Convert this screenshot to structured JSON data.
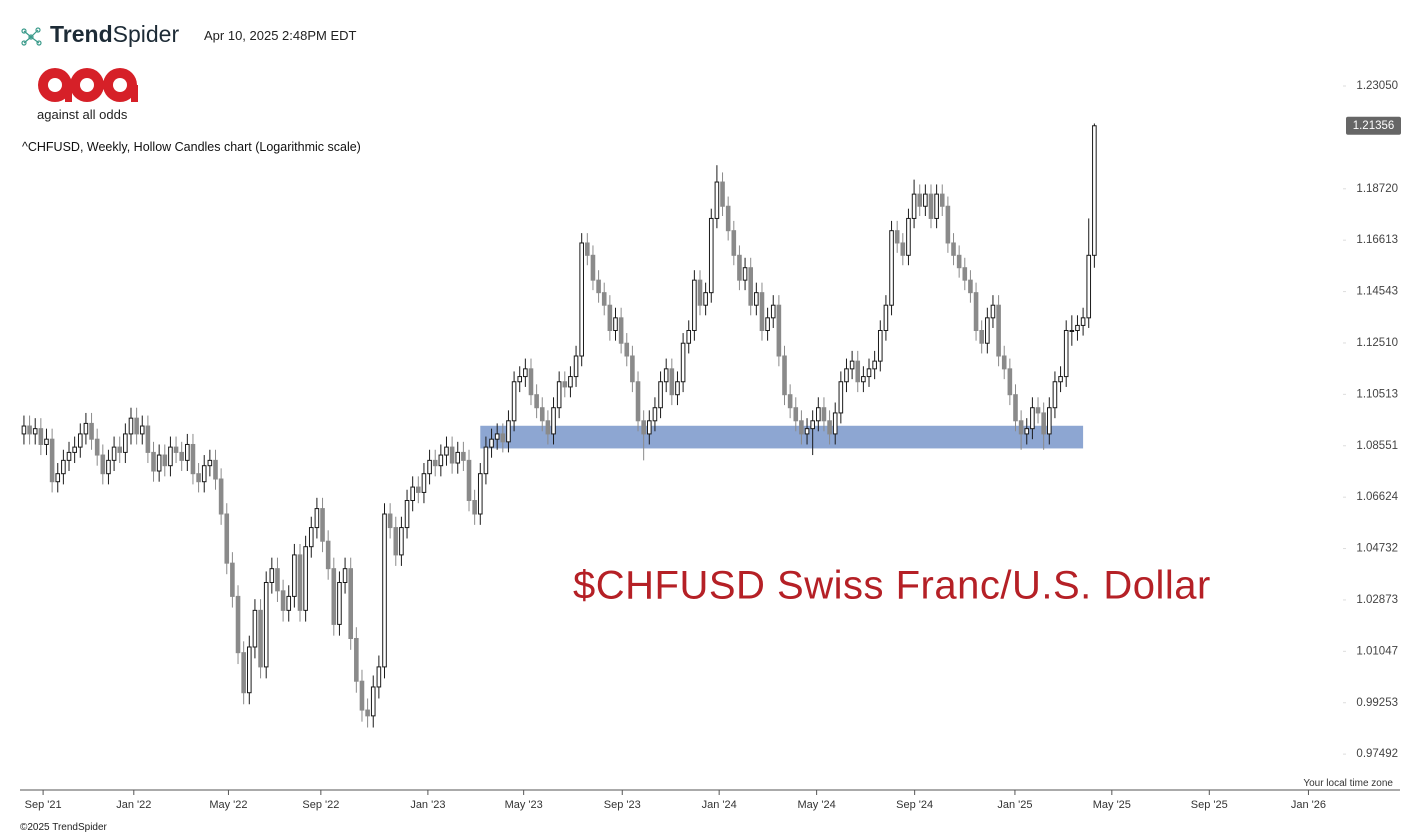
{
  "header": {
    "brand_bold": "Trend",
    "brand_light": "Spider",
    "timestamp": "Apr 10, 2025 2:48PM EDT"
  },
  "logo": {
    "caption": "against all odds"
  },
  "footer": {
    "copyright": "©2025 TrendSpider",
    "timezone_note": "Your local time zone"
  },
  "chart_data": {
    "type": "candlestick",
    "title": "^CHFUSD, Weekly, Hollow Candles chart (Logarithmic scale)",
    "annotation": "$CHFUSD Swiss Franc/U.S. Dollar",
    "log_scale": true,
    "up_color": "#1a1a1a",
    "down_color": "#8a8a8a",
    "last_price": 1.21356,
    "support_zone": {
      "xlim": [
        81,
        188
      ],
      "ylim": [
        1.0845,
        1.0931
      ],
      "color": "#8da6d2"
    },
    "xlim": [
      -0.7,
      233.6
    ],
    "xticks": [
      {
        "value": 3.4,
        "label": "Sep '21"
      },
      {
        "value": 19.5,
        "label": "Jan '22"
      },
      {
        "value": 36.3,
        "label": "May '22"
      },
      {
        "value": 52.7,
        "label": "Sep '22"
      },
      {
        "value": 71.7,
        "label": "Jan '23"
      },
      {
        "value": 88.7,
        "label": "May '23"
      },
      {
        "value": 106.2,
        "label": "Sep '23"
      },
      {
        "value": 123.4,
        "label": "Jan '24"
      },
      {
        "value": 140.7,
        "label": "May '24"
      },
      {
        "value": 158.1,
        "label": "Sep '24"
      },
      {
        "value": 175.9,
        "label": "Jan '25"
      },
      {
        "value": 193.1,
        "label": "May '25"
      },
      {
        "value": 210.4,
        "label": "Sep '25"
      },
      {
        "value": 228.0,
        "label": "Jan '26"
      }
    ],
    "ylim": [
      0.9628,
      1.2417
    ],
    "yticks": [
      {
        "value": 1.2305,
        "label": "1.23050"
      },
      {
        "value": 1.1872,
        "label": "1.18720"
      },
      {
        "value": 1.16613,
        "label": "1.16613"
      },
      {
        "value": 1.14543,
        "label": "1.14543"
      },
      {
        "value": 1.1251,
        "label": "1.12510"
      },
      {
        "value": 1.10513,
        "label": "1.10513"
      },
      {
        "value": 1.08551,
        "label": "1.08551"
      },
      {
        "value": 1.06624,
        "label": "1.06624"
      },
      {
        "value": 1.04732,
        "label": "1.04732"
      },
      {
        "value": 1.02873,
        "label": "1.02873"
      },
      {
        "value": 1.01047,
        "label": "1.01047"
      },
      {
        "value": 0.99253,
        "label": "0.99253"
      },
      {
        "value": 0.97492,
        "label": "0.97492"
      }
    ],
    "open": [
      1.09,
      1.093,
      1.09,
      1.092,
      1.086,
      1.088,
      1.072,
      1.075,
      1.08,
      1.083,
      1.085,
      1.09,
      1.094,
      1.088,
      1.082,
      1.075,
      1.08,
      1.085,
      1.083,
      1.09,
      1.096,
      1.09,
      1.093,
      1.083,
      1.076,
      1.082,
      1.078,
      1.085,
      1.083,
      1.08,
      1.086,
      1.075,
      1.072,
      1.078,
      1.08,
      1.073,
      1.06,
      1.042,
      1.03,
      1.01,
      0.996,
      1.012,
      1.025,
      1.005,
      1.035,
      1.04,
      1.032,
      1.025,
      1.03,
      1.045,
      1.025,
      1.048,
      1.055,
      1.062,
      1.05,
      1.04,
      1.02,
      1.035,
      1.04,
      1.015,
      1.0,
      0.99,
      0.988,
      0.998,
      1.005,
      1.06,
      1.055,
      1.045,
      1.055,
      1.065,
      1.07,
      1.068,
      1.075,
      1.08,
      1.078,
      1.082,
      1.085,
      1.079,
      1.083,
      1.08,
      1.065,
      1.06,
      1.075,
      1.085,
      1.088,
      1.09,
      1.087,
      1.095,
      1.11,
      1.112,
      1.115,
      1.105,
      1.1,
      1.095,
      1.09,
      1.1,
      1.11,
      1.108,
      1.112,
      1.12,
      1.165,
      1.16,
      1.15,
      1.145,
      1.14,
      1.13,
      1.135,
      1.125,
      1.12,
      1.11,
      1.095,
      1.09,
      1.095,
      1.1,
      1.11,
      1.115,
      1.105,
      1.11,
      1.125,
      1.13,
      1.15,
      1.14,
      1.145,
      1.175,
      1.19,
      1.18,
      1.17,
      1.16,
      1.15,
      1.155,
      1.14,
      1.145,
      1.13,
      1.135,
      1.14,
      1.12,
      1.105,
      1.1,
      1.095,
      1.09,
      1.092,
      1.095,
      1.1,
      1.095,
      1.09,
      1.098,
      1.11,
      1.115,
      1.118,
      1.11,
      1.112,
      1.115,
      1.118,
      1.13,
      1.14,
      1.17,
      1.165,
      1.16,
      1.175,
      1.185,
      1.18,
      1.185,
      1.175,
      1.185,
      1.18,
      1.165,
      1.16,
      1.155,
      1.15,
      1.145,
      1.13,
      1.125,
      1.135,
      1.14,
      1.12,
      1.115,
      1.105,
      1.095,
      1.09,
      1.092,
      1.1,
      1.098,
      1.09,
      1.1,
      1.11,
      1.112,
      1.13,
      1.13,
      1.132,
      1.135,
      1.16
    ],
    "high": [
      1.097,
      1.097,
      1.096,
      1.096,
      1.092,
      1.092,
      1.079,
      1.084,
      1.087,
      1.089,
      1.094,
      1.098,
      1.098,
      1.092,
      1.086,
      1.084,
      1.089,
      1.089,
      1.094,
      1.1,
      1.1,
      1.097,
      1.097,
      1.087,
      1.086,
      1.086,
      1.089,
      1.089,
      1.087,
      1.09,
      1.09,
      1.079,
      1.082,
      1.084,
      1.084,
      1.077,
      1.064,
      1.046,
      1.034,
      1.014,
      1.016,
      1.029,
      1.029,
      1.039,
      1.044,
      1.044,
      1.036,
      1.034,
      1.049,
      1.049,
      1.052,
      1.059,
      1.066,
      1.066,
      1.054,
      1.044,
      1.039,
      1.044,
      1.044,
      1.019,
      1.004,
      0.994,
      1.002,
      1.009,
      1.064,
      1.064,
      1.059,
      1.059,
      1.069,
      1.074,
      1.074,
      1.079,
      1.084,
      1.084,
      1.086,
      1.089,
      1.089,
      1.087,
      1.087,
      1.084,
      1.069,
      1.079,
      1.089,
      1.092,
      1.094,
      1.094,
      1.099,
      1.114,
      1.116,
      1.119,
      1.119,
      1.109,
      1.104,
      1.099,
      1.104,
      1.114,
      1.114,
      1.116,
      1.124,
      1.169,
      1.169,
      1.164,
      1.154,
      1.149,
      1.144,
      1.139,
      1.139,
      1.129,
      1.124,
      1.114,
      1.099,
      1.099,
      1.104,
      1.114,
      1.119,
      1.119,
      1.114,
      1.129,
      1.134,
      1.154,
      1.154,
      1.149,
      1.179,
      1.197,
      1.194,
      1.184,
      1.174,
      1.164,
      1.159,
      1.159,
      1.149,
      1.149,
      1.139,
      1.144,
      1.144,
      1.124,
      1.109,
      1.104,
      1.099,
      1.096,
      1.099,
      1.104,
      1.104,
      1.099,
      1.102,
      1.114,
      1.119,
      1.122,
      1.122,
      1.116,
      1.119,
      1.122,
      1.134,
      1.144,
      1.174,
      1.174,
      1.169,
      1.179,
      1.191,
      1.189,
      1.189,
      1.189,
      1.189,
      1.189,
      1.184,
      1.169,
      1.164,
      1.159,
      1.154,
      1.149,
      1.134,
      1.139,
      1.144,
      1.144,
      1.124,
      1.119,
      1.109,
      1.099,
      1.096,
      1.104,
      1.104,
      1.102,
      1.104,
      1.114,
      1.116,
      1.134,
      1.136,
      1.136,
      1.139,
      1.175,
      1.2145
    ],
    "low": [
      1.086,
      1.086,
      1.086,
      1.082,
      1.082,
      1.068,
      1.068,
      1.071,
      1.076,
      1.079,
      1.081,
      1.086,
      1.084,
      1.078,
      1.071,
      1.071,
      1.076,
      1.079,
      1.079,
      1.086,
      1.086,
      1.086,
      1.079,
      1.072,
      1.072,
      1.074,
      1.074,
      1.079,
      1.076,
      1.076,
      1.071,
      1.068,
      1.068,
      1.074,
      1.069,
      1.056,
      1.038,
      1.026,
      1.006,
      0.992,
      0.992,
      1.008,
      1.001,
      1.001,
      1.031,
      1.028,
      1.021,
      1.021,
      1.026,
      1.021,
      1.021,
      1.044,
      1.051,
      1.046,
      1.036,
      1.016,
      1.016,
      1.031,
      1.011,
      0.996,
      0.986,
      0.984,
      0.984,
      0.994,
      1.001,
      1.051,
      1.041,
      1.041,
      1.051,
      1.061,
      1.064,
      1.064,
      1.071,
      1.074,
      1.074,
      1.078,
      1.075,
      1.075,
      1.076,
      1.061,
      1.056,
      1.056,
      1.071,
      1.081,
      1.084,
      1.083,
      1.083,
      1.091,
      1.106,
      1.108,
      1.101,
      1.096,
      1.091,
      1.086,
      1.086,
      1.096,
      1.104,
      1.104,
      1.108,
      1.116,
      1.156,
      1.146,
      1.141,
      1.136,
      1.126,
      1.126,
      1.121,
      1.116,
      1.106,
      1.091,
      1.08,
      1.086,
      1.091,
      1.096,
      1.106,
      1.101,
      1.101,
      1.106,
      1.121,
      1.126,
      1.136,
      1.136,
      1.141,
      1.171,
      1.176,
      1.166,
      1.156,
      1.146,
      1.146,
      1.136,
      1.136,
      1.126,
      1.126,
      1.131,
      1.116,
      1.101,
      1.096,
      1.091,
      1.086,
      1.086,
      1.082,
      1.091,
      1.091,
      1.086,
      1.086,
      1.094,
      1.106,
      1.111,
      1.106,
      1.106,
      1.108,
      1.111,
      1.114,
      1.126,
      1.136,
      1.161,
      1.156,
      1.156,
      1.171,
      1.176,
      1.176,
      1.171,
      1.171,
      1.176,
      1.161,
      1.156,
      1.151,
      1.146,
      1.141,
      1.126,
      1.121,
      1.121,
      1.131,
      1.116,
      1.111,
      1.101,
      1.091,
      1.084,
      1.086,
      1.088,
      1.094,
      1.084,
      1.086,
      1.096,
      1.106,
      1.108,
      1.124,
      1.126,
      1.128,
      1.131,
      1.155
    ],
    "close": [
      1.093,
      1.09,
      1.092,
      1.086,
      1.088,
      1.072,
      1.075,
      1.08,
      1.083,
      1.085,
      1.09,
      1.094,
      1.088,
      1.082,
      1.075,
      1.08,
      1.085,
      1.083,
      1.09,
      1.096,
      1.09,
      1.093,
      1.083,
      1.076,
      1.082,
      1.078,
      1.085,
      1.083,
      1.08,
      1.086,
      1.075,
      1.072,
      1.078,
      1.08,
      1.073,
      1.06,
      1.042,
      1.03,
      1.01,
      0.996,
      1.012,
      1.025,
      1.005,
      1.035,
      1.04,
      1.032,
      1.025,
      1.03,
      1.045,
      1.025,
      1.048,
      1.055,
      1.062,
      1.05,
      1.04,
      1.02,
      1.035,
      1.04,
      1.015,
      1.0,
      0.99,
      0.988,
      0.998,
      1.005,
      1.06,
      1.055,
      1.045,
      1.055,
      1.065,
      1.07,
      1.068,
      1.075,
      1.08,
      1.078,
      1.082,
      1.085,
      1.079,
      1.083,
      1.08,
      1.065,
      1.06,
      1.075,
      1.085,
      1.088,
      1.09,
      1.087,
      1.095,
      1.11,
      1.112,
      1.115,
      1.105,
      1.1,
      1.095,
      1.09,
      1.1,
      1.11,
      1.108,
      1.112,
      1.12,
      1.165,
      1.16,
      1.15,
      1.145,
      1.14,
      1.13,
      1.135,
      1.125,
      1.12,
      1.11,
      1.095,
      1.09,
      1.095,
      1.1,
      1.11,
      1.115,
      1.105,
      1.11,
      1.125,
      1.13,
      1.15,
      1.14,
      1.145,
      1.175,
      1.19,
      1.18,
      1.17,
      1.16,
      1.15,
      1.155,
      1.14,
      1.145,
      1.13,
      1.135,
      1.14,
      1.12,
      1.105,
      1.1,
      1.095,
      1.09,
      1.092,
      1.095,
      1.1,
      1.095,
      1.09,
      1.098,
      1.11,
      1.115,
      1.118,
      1.11,
      1.112,
      1.115,
      1.118,
      1.13,
      1.14,
      1.17,
      1.165,
      1.16,
      1.175,
      1.185,
      1.18,
      1.185,
      1.175,
      1.185,
      1.18,
      1.165,
      1.16,
      1.155,
      1.15,
      1.145,
      1.13,
      1.125,
      1.135,
      1.14,
      1.12,
      1.115,
      1.105,
      1.095,
      1.09,
      1.092,
      1.1,
      1.098,
      1.09,
      1.1,
      1.11,
      1.112,
      1.13,
      1.13,
      1.132,
      1.135,
      1.16,
      1.21356
    ]
  }
}
